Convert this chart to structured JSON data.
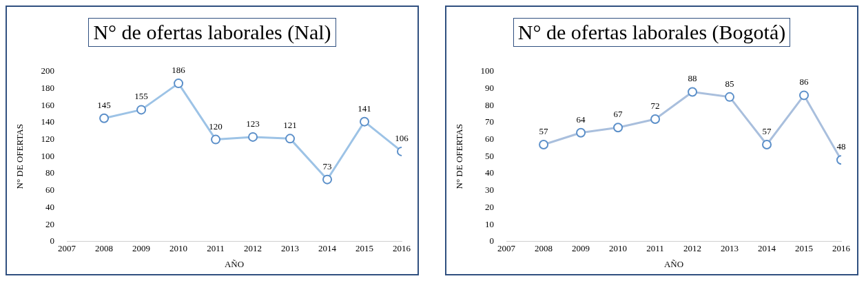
{
  "chart_data": [
    {
      "type": "line",
      "title": "N° de ofertas laborales (Nal)",
      "xlabel": "AÑO",
      "ylabel": "N° DE OFERTAS",
      "x": [
        2008,
        2009,
        2010,
        2011,
        2012,
        2013,
        2014,
        2015,
        2016
      ],
      "xlim": [
        2007,
        2016
      ],
      "xticks": [
        2007,
        2008,
        2009,
        2010,
        2011,
        2012,
        2013,
        2014,
        2015,
        2016
      ],
      "ylim": [
        0,
        200
      ],
      "yticks": [
        0,
        20,
        40,
        60,
        80,
        100,
        120,
        140,
        160,
        180,
        200
      ],
      "grid": false,
      "legend": false,
      "marker": "circle",
      "line_style": "solid",
      "data_labels": true,
      "series": [
        {
          "color": "#9dc3e6",
          "values": [
            145,
            155,
            186,
            120,
            123,
            121,
            73,
            141,
            106
          ]
        }
      ]
    },
    {
      "type": "line",
      "title": "N° de ofertas laborales (Bogotá)",
      "xlabel": "AÑO",
      "ylabel": "N° DE OFERTAS",
      "x": [
        2008,
        2009,
        2010,
        2011,
        2012,
        2013,
        2014,
        2015,
        2016
      ],
      "xlim": [
        2007,
        2016
      ],
      "xticks": [
        2007,
        2008,
        2009,
        2010,
        2011,
        2012,
        2013,
        2014,
        2015,
        2016
      ],
      "ylim": [
        0,
        100
      ],
      "yticks": [
        0,
        10,
        20,
        30,
        40,
        50,
        60,
        70,
        80,
        90,
        100
      ],
      "grid": false,
      "legend": false,
      "marker": "circle",
      "line_style": "solid",
      "data_labels": true,
      "series": [
        {
          "color": "#a9bfdd",
          "values": [
            57,
            64,
            67,
            72,
            88,
            85,
            57,
            86,
            48
          ]
        }
      ]
    }
  ]
}
